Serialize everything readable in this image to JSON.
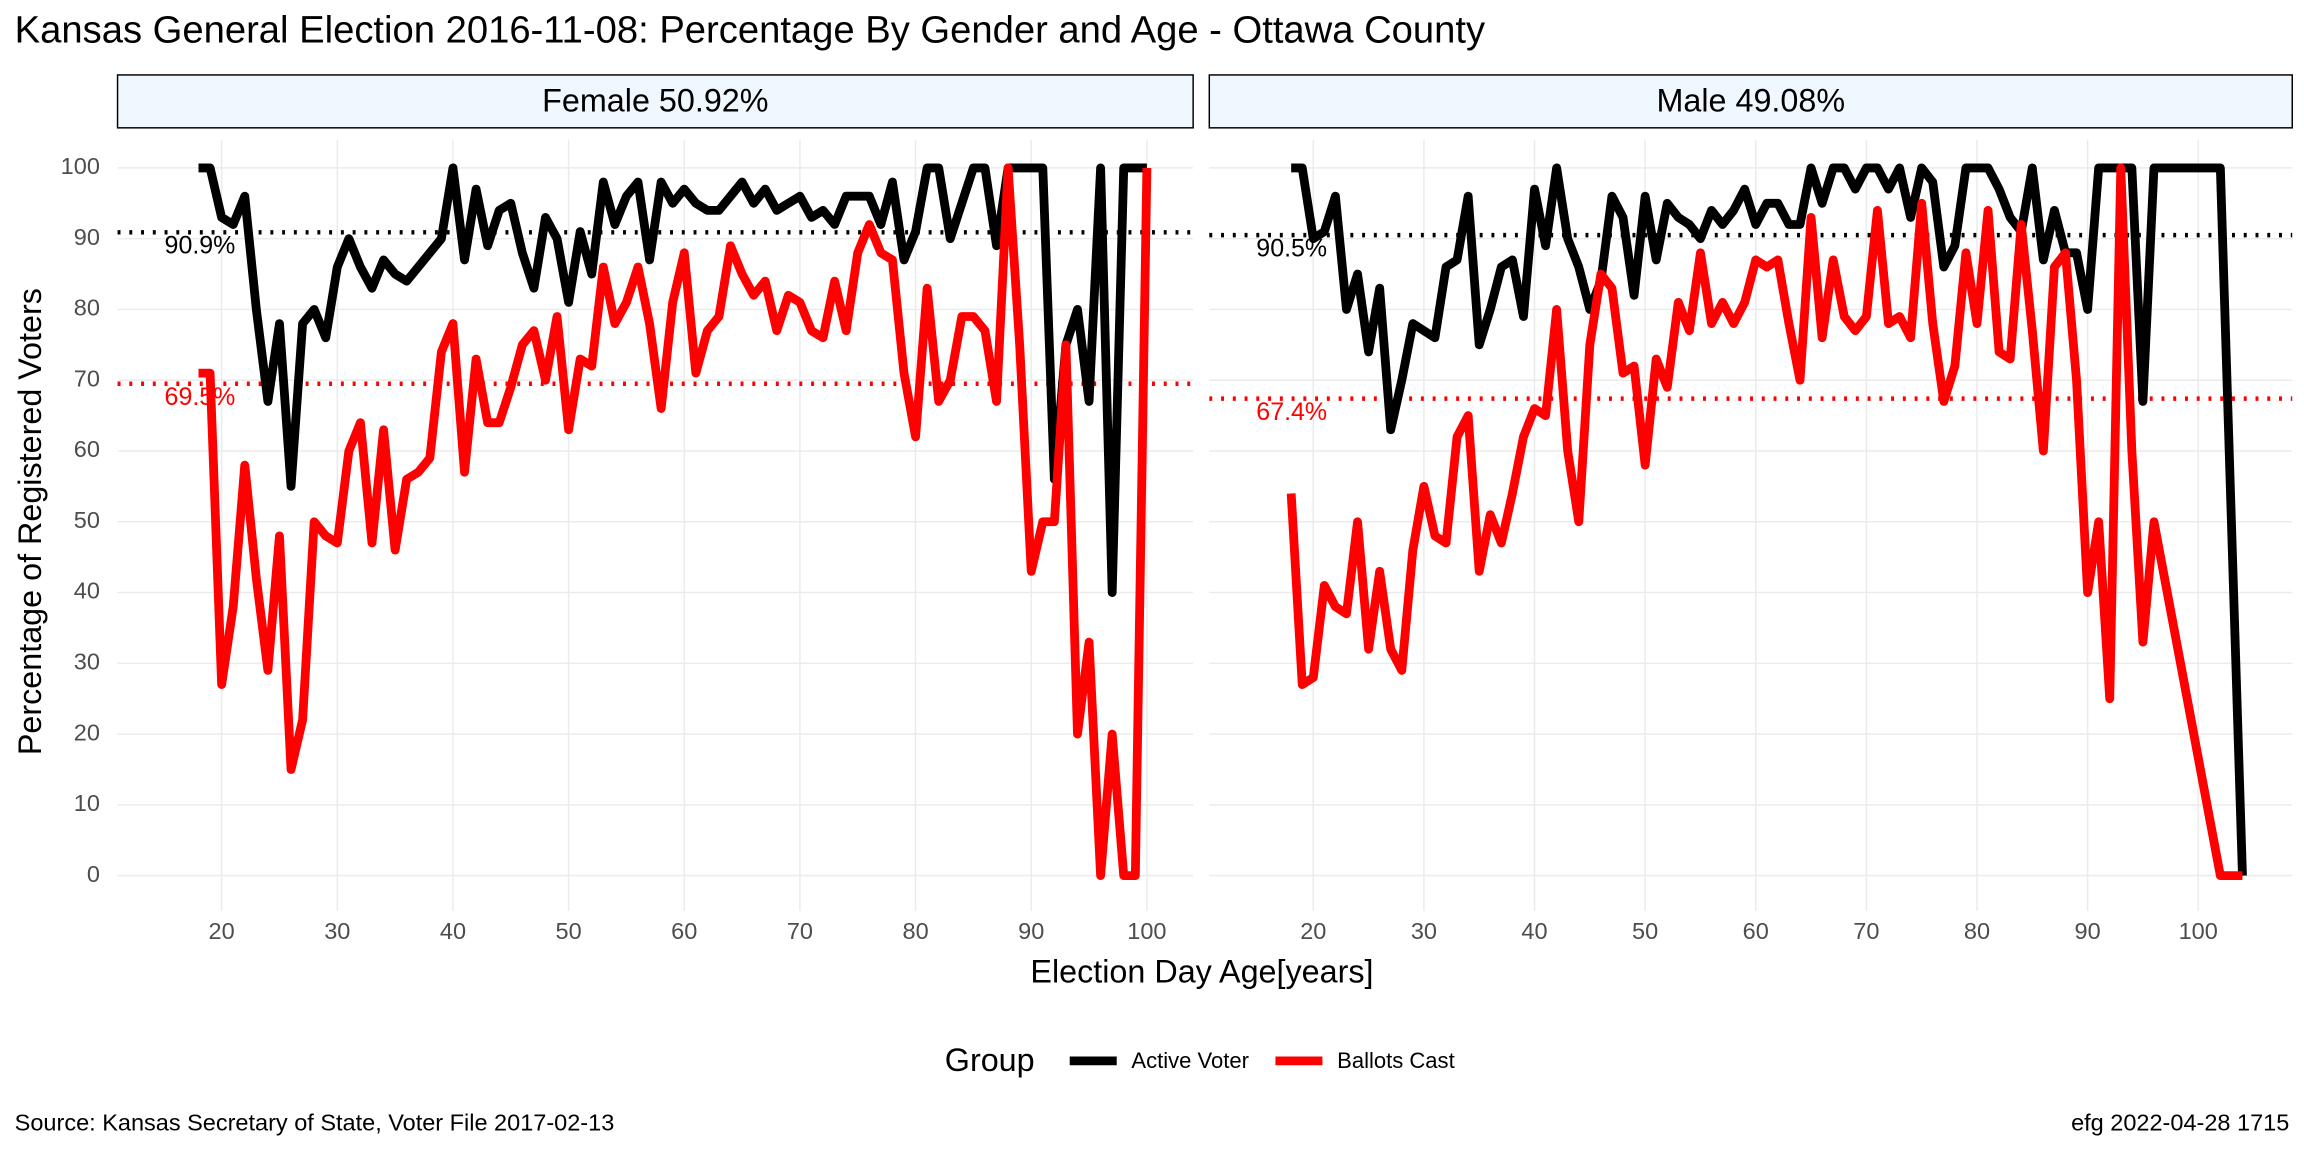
{
  "title": "Kansas General Election 2016-11-08:  Percentage By Gender and Age - Ottawa County",
  "y_label": "Percentage of Registered Voters",
  "x_label": "Election Day Age[years]",
  "legend_title": "Group",
  "source": "Source:  Kansas Secretary of State, Voter File  2017-02-13",
  "stamp": "efg 2022-04-28 1715",
  "chart_data": [
    {
      "type": "line",
      "title": "Female 50.92%",
      "xlim": [
        11,
        104
      ],
      "xticks": [
        20,
        30,
        40,
        50,
        60,
        70,
        80,
        90,
        100
      ],
      "ylim": [
        -5,
        104
      ],
      "yticks": [
        0,
        10,
        20,
        30,
        40,
        50,
        60,
        70,
        80,
        90,
        100
      ],
      "grid": true,
      "x": [
        18,
        19,
        20,
        21,
        22,
        23,
        24,
        25,
        26,
        27,
        28,
        29,
        30,
        31,
        32,
        33,
        34,
        35,
        36,
        37,
        38,
        39,
        40,
        41,
        42,
        43,
        44,
        45,
        46,
        47,
        48,
        49,
        50,
        51,
        52,
        53,
        54,
        55,
        56,
        57,
        58,
        59,
        60,
        61,
        62,
        63,
        64,
        65,
        66,
        67,
        68,
        69,
        70,
        71,
        72,
        73,
        74,
        75,
        76,
        77,
        78,
        79,
        80,
        81,
        82,
        83,
        84,
        85,
        86,
        87,
        88,
        89,
        90,
        91,
        92,
        93,
        94,
        95,
        96,
        97,
        98,
        99,
        100
      ],
      "series": [
        {
          "name": "Active Voter",
          "color": "#000000",
          "values": [
            100,
            100,
            93,
            92,
            96,
            80,
            67,
            78,
            55,
            78,
            80,
            76,
            86,
            90,
            86,
            83,
            87,
            85,
            84,
            86,
            88,
            90,
            100,
            87,
            97,
            89,
            94,
            95,
            88,
            83,
            93,
            90,
            81,
            91,
            85,
            98,
            92,
            96,
            98,
            87,
            98,
            95,
            97,
            95,
            94,
            94,
            96,
            98,
            95,
            97,
            94,
            95,
            96,
            93,
            94,
            92,
            96,
            96,
            96,
            92,
            98,
            87,
            91,
            100,
            100,
            90,
            95,
            100,
            100,
            89,
            100,
            100,
            100,
            100,
            56,
            75,
            80,
            67,
            100,
            40,
            100,
            100,
            100
          ]
        },
        {
          "name": "Ballots Cast",
          "color": "#ff0000",
          "values": [
            71,
            71,
            27,
            38,
            58,
            42,
            29,
            48,
            15,
            22,
            50,
            48,
            47,
            60,
            64,
            47,
            63,
            46,
            56,
            57,
            59,
            74,
            78,
            57,
            73,
            64,
            64,
            69,
            75,
            77,
            70,
            79,
            63,
            73,
            72,
            86,
            78,
            81,
            86,
            78,
            66,
            81,
            88,
            71,
            77,
            79,
            89,
            85,
            82,
            84,
            77,
            82,
            81,
            77,
            76,
            84,
            77,
            88,
            92,
            88,
            87,
            71,
            62,
            83,
            67,
            70,
            79,
            79,
            77,
            67,
            100,
            75,
            43,
            50,
            50,
            75,
            20,
            33,
            0,
            20,
            0,
            0,
            100
          ]
        }
      ],
      "reference_lines": [
        {
          "value": 90.9,
          "label": "90.9%",
          "color": "#000000"
        },
        {
          "value": 69.5,
          "label": "69.5%",
          "color": "#ff0000"
        }
      ]
    },
    {
      "type": "line",
      "title": "Male 49.08%",
      "xlim": [
        10.6,
        108.5
      ],
      "xticks": [
        20,
        30,
        40,
        50,
        60,
        70,
        80,
        90,
        100
      ],
      "ylim": [
        -5,
        104
      ],
      "yticks": [
        0,
        10,
        20,
        30,
        40,
        50,
        60,
        70,
        80,
        90,
        100
      ],
      "grid": true,
      "x": [
        18,
        19,
        20,
        21,
        22,
        23,
        24,
        25,
        26,
        27,
        28,
        29,
        30,
        31,
        32,
        33,
        34,
        35,
        36,
        37,
        38,
        39,
        40,
        41,
        42,
        43,
        44,
        45,
        46,
        47,
        48,
        49,
        50,
        51,
        52,
        53,
        54,
        55,
        56,
        57,
        58,
        59,
        60,
        61,
        62,
        63,
        64,
        65,
        66,
        67,
        68,
        69,
        70,
        71,
        72,
        73,
        74,
        75,
        76,
        77,
        78,
        79,
        80,
        81,
        82,
        83,
        84,
        85,
        86,
        87,
        88,
        89,
        90,
        91,
        92,
        93,
        94,
        95,
        96,
        102,
        104
      ],
      "series": [
        {
          "name": "Active Voter",
          "color": "#000000",
          "values": [
            100,
            100,
            90,
            91,
            96,
            80,
            85,
            74,
            83,
            63,
            70,
            78,
            77,
            76,
            86,
            87,
            96,
            75,
            80,
            86,
            87,
            79,
            97,
            89,
            100,
            90,
            86,
            80,
            84,
            96,
            93,
            82,
            96,
            87,
            95,
            93,
            92,
            90,
            94,
            92,
            94,
            97,
            92,
            95,
            95,
            92,
            92,
            100,
            95,
            100,
            100,
            97,
            100,
            100,
            97,
            100,
            93,
            100,
            98,
            86,
            89,
            100,
            100,
            100,
            97,
            93,
            91,
            100,
            87,
            94,
            88,
            88,
            80,
            100,
            100,
            100,
            100,
            67,
            100,
            100,
            0
          ]
        },
        {
          "name": "Ballots Cast",
          "color": "#ff0000",
          "values": [
            54,
            27,
            28,
            41,
            38,
            37,
            50,
            32,
            43,
            32,
            29,
            46,
            55,
            48,
            47,
            62,
            65,
            43,
            51,
            47,
            54,
            62,
            66,
            65,
            80,
            60,
            50,
            75,
            85,
            83,
            71,
            72,
            58,
            73,
            69,
            81,
            77,
            88,
            78,
            81,
            78,
            81,
            87,
            86,
            87,
            78,
            70,
            93,
            76,
            87,
            79,
            77,
            79,
            94,
            78,
            79,
            76,
            95,
            78,
            67,
            72,
            88,
            78,
            94,
            74,
            73,
            92,
            77,
            60,
            86,
            88,
            70,
            40,
            50,
            25,
            100,
            60,
            33,
            50,
            0,
            0
          ]
        }
      ],
      "reference_lines": [
        {
          "value": 90.5,
          "label": "90.5%",
          "color": "#000000"
        },
        {
          "value": 67.4,
          "label": "67.4%",
          "color": "#ff0000"
        }
      ]
    }
  ]
}
